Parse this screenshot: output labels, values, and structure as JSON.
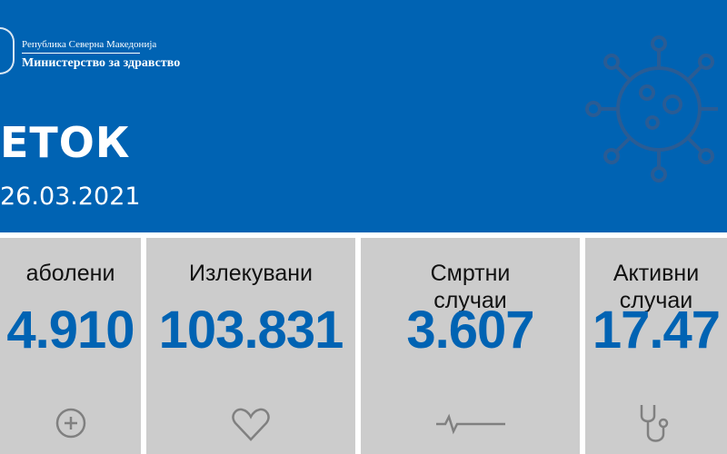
{
  "header": {
    "republic": "Република Северна Македонија",
    "ministry": "Министерство за здравство",
    "title": "ЕТОК",
    "date": "26.03.2021"
  },
  "colors": {
    "primary": "#0063b3",
    "card": "#cccccc",
    "icon": "#808080"
  },
  "cards": [
    {
      "label": "аболени",
      "value": "4.910",
      "icon": "plus-circle-icon"
    },
    {
      "label": "Излекувани",
      "value": "103.831",
      "icon": "heart-icon"
    },
    {
      "label": "Смртни случаи",
      "value": "3.607",
      "icon": "heartbeat-line-icon"
    },
    {
      "label": "Активни случаи",
      "value": "17.47",
      "icon": "stethoscope-icon"
    }
  ]
}
